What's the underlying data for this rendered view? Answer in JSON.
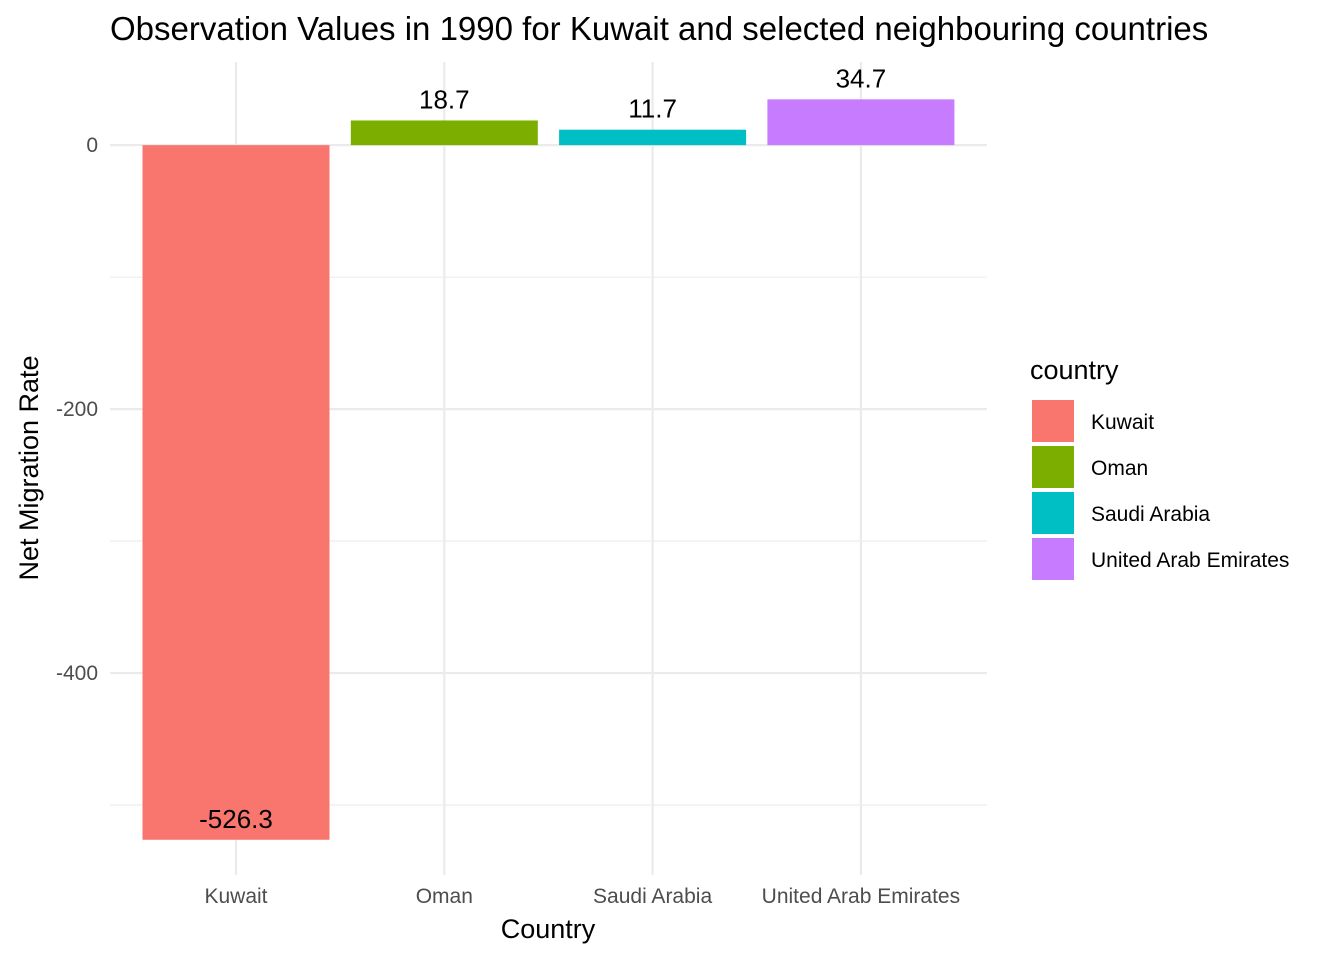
{
  "chart_data": {
    "type": "bar",
    "title": "Observation Values in 1990 for Kuwait and selected neighbouring countries",
    "xlabel": "Country",
    "ylabel": "Net Migration Rate",
    "categories": [
      "Kuwait",
      "Oman",
      "Saudi Arabia",
      "United Arab Emirates"
    ],
    "values": [
      -526.3,
      18.7,
      11.7,
      34.7
    ],
    "value_labels": [
      "-526.3",
      "18.7",
      "11.7",
      "34.7"
    ],
    "colors": [
      "#F8766D",
      "#7CAE00",
      "#00BFC4",
      "#C77CFF"
    ],
    "ylim": [
      -553,
      63
    ],
    "yticks": [
      0,
      -200,
      -400
    ],
    "ytick_labels": [
      "0",
      "-200",
      "-400"
    ],
    "grid": true,
    "legend": {
      "title": "country",
      "position": "right",
      "entries": [
        "Kuwait",
        "Oman",
        "Saudi Arabia",
        "United Arab Emirates"
      ]
    }
  }
}
